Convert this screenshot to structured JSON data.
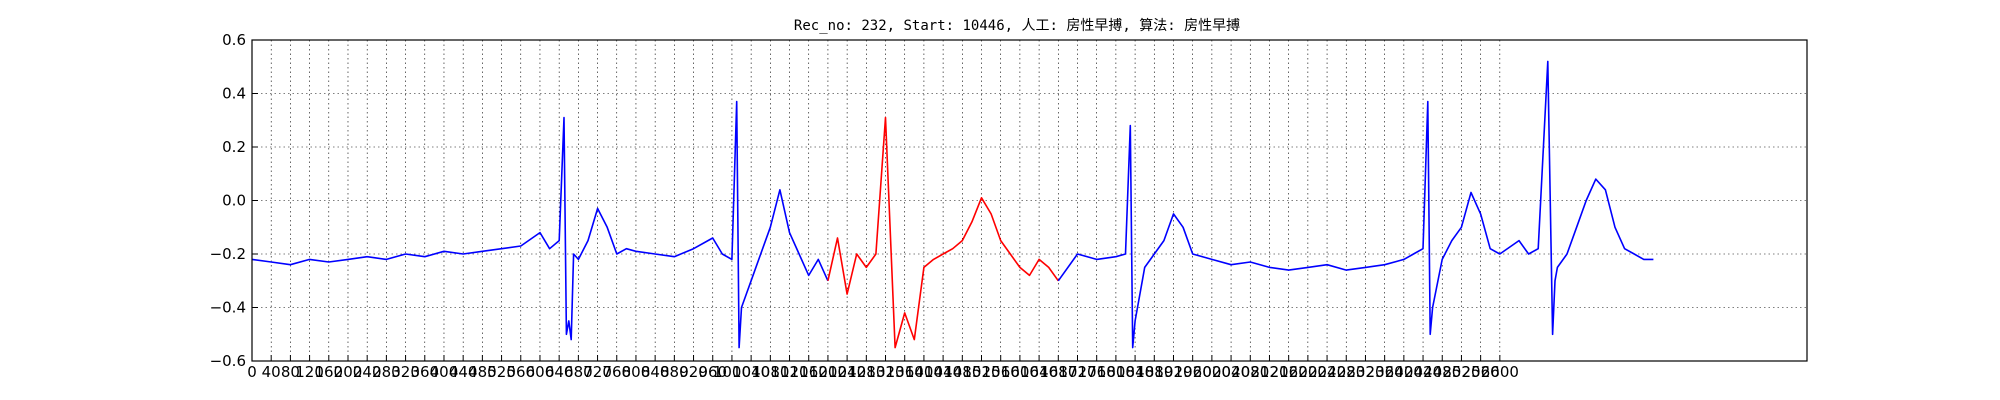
{
  "chart_data": {
    "type": "line",
    "title": "Rec_no: 232, Start: 10446, 人工: 房性早搏, 算法: 房性早搏",
    "xlabel": "",
    "ylabel": "",
    "xlim": [
      0,
      3240
    ],
    "ylim": [
      -0.6,
      0.6
    ],
    "grid": true,
    "y_ticks": [
      "0.6",
      "0.4",
      "0.2",
      "0.0",
      "−0.2",
      "−0.4",
      "−0.6"
    ],
    "x_tick_values": [
      0,
      40,
      80,
      120,
      160,
      200,
      240,
      280,
      320,
      360,
      400,
      440,
      480,
      520,
      560,
      600,
      640,
      680,
      720,
      760,
      800,
      840,
      880,
      920,
      960,
      1000,
      1040,
      1080,
      1120,
      1160,
      1200,
      1240,
      1280,
      1320,
      1360,
      1400,
      1440,
      1480,
      1520,
      1560,
      1600,
      1640,
      1680,
      1720,
      1760,
      1800,
      1840,
      1880,
      1920,
      1960,
      2000,
      2040,
      2080,
      2120,
      2160,
      2200,
      2240,
      2280,
      2320,
      2360,
      2400,
      2440,
      2480,
      2520,
      2560,
      2600
    ],
    "x_tick_labels": [
      "0",
      "40",
      "80",
      "120",
      "160",
      "200",
      "240",
      "280",
      "320",
      "360",
      "400",
      "440",
      "480",
      "520",
      "560",
      "600",
      "640",
      "680",
      "720",
      "760",
      "800",
      "840",
      "880",
      "920",
      "960",
      "1000",
      "1040",
      "1080",
      "1120",
      "1160",
      "1200",
      "1240",
      "1280",
      "1320",
      "1360",
      "1400",
      "1440",
      "1480",
      "1520",
      "1560",
      "1600",
      "1640",
      "1680",
      "1720",
      "1760",
      "1800",
      "1840",
      "1880",
      "1920",
      "1960",
      "2000",
      "2040",
      "2080",
      "2120",
      "2160",
      "2200",
      "2240",
      "2280",
      "2320",
      "2360",
      "2400",
      "2440",
      "2480",
      "2520",
      "2560",
      "2600"
    ],
    "colors": {
      "normal": "#0000ff",
      "highlight": "#ff0000"
    },
    "series": [
      {
        "color": "#0000ff",
        "x": [
          0,
          40,
          80,
          120,
          160,
          200,
          240,
          280,
          320,
          360,
          400,
          440,
          480,
          520,
          560,
          600,
          620,
          640,
          650,
          655,
          660,
          665,
          670,
          680,
          700,
          720,
          740,
          760,
          780,
          800,
          840,
          880,
          920,
          960,
          980,
          1000,
          1010,
          1015,
          1020,
          1030,
          1040,
          1060,
          1080,
          1100,
          1120,
          1140,
          1160,
          1180,
          1200
        ],
        "y": [
          -0.22,
          -0.23,
          -0.24,
          -0.22,
          -0.23,
          -0.22,
          -0.21,
          -0.22,
          -0.2,
          -0.21,
          -0.19,
          -0.2,
          -0.19,
          -0.18,
          -0.17,
          -0.12,
          -0.18,
          -0.15,
          0.31,
          -0.5,
          -0.45,
          -0.52,
          -0.2,
          -0.22,
          -0.15,
          -0.03,
          -0.1,
          -0.2,
          -0.18,
          -0.19,
          -0.2,
          -0.21,
          -0.18,
          -0.14,
          -0.2,
          -0.22,
          0.37,
          -0.55,
          -0.4,
          -0.35,
          -0.3,
          -0.2,
          -0.1,
          0.04,
          -0.12,
          -0.2,
          -0.28,
          -0.22,
          -0.3
        ]
      },
      {
        "color": "#ff0000",
        "x": [
          1200,
          1220,
          1240,
          1260,
          1280,
          1300,
          1320,
          1340,
          1360,
          1380,
          1400,
          1420,
          1440,
          1460,
          1480,
          1500,
          1520,
          1540,
          1560,
          1580,
          1600,
          1620,
          1640,
          1660,
          1680
        ],
        "y": [
          -0.3,
          -0.14,
          -0.35,
          -0.2,
          -0.25,
          -0.2,
          0.31,
          -0.55,
          -0.42,
          -0.52,
          -0.25,
          -0.22,
          -0.2,
          -0.18,
          -0.15,
          -0.08,
          0.01,
          -0.05,
          -0.15,
          -0.2,
          -0.25,
          -0.28,
          -0.22,
          -0.25,
          -0.3
        ]
      },
      {
        "color": "#0000ff",
        "x": [
          1680,
          1720,
          1760,
          1800,
          1820,
          1830,
          1835,
          1840,
          1860,
          1880,
          1900,
          1920,
          1940,
          1960,
          2000,
          2040,
          2080,
          2120,
          2160,
          2200,
          2240,
          2280,
          2320,
          2360,
          2400,
          2420,
          2440,
          2450,
          2455,
          2460,
          2480,
          2500,
          2520,
          2540,
          2560,
          2580,
          2600,
          2640,
          2660,
          2680,
          2700,
          2710,
          2715,
          2720,
          2740,
          2760,
          2780,
          2800,
          2820,
          2840,
          2860,
          2880,
          2900,
          2920
        ],
        "y": [
          -0.3,
          -0.2,
          -0.22,
          -0.21,
          -0.2,
          0.28,
          -0.55,
          -0.45,
          -0.25,
          -0.2,
          -0.15,
          -0.05,
          -0.1,
          -0.2,
          -0.22,
          -0.24,
          -0.23,
          -0.25,
          -0.26,
          -0.25,
          -0.24,
          -0.26,
          -0.25,
          -0.24,
          -0.22,
          -0.2,
          -0.18,
          0.37,
          -0.5,
          -0.4,
          -0.22,
          -0.15,
          -0.1,
          0.03,
          -0.05,
          -0.18,
          -0.2,
          -0.15,
          -0.2,
          -0.18,
          0.52,
          -0.5,
          -0.3,
          -0.25,
          -0.2,
          -0.1,
          0.0,
          0.08,
          0.04,
          -0.1,
          -0.18,
          -0.2,
          -0.22,
          -0.22
        ]
      }
    ]
  }
}
